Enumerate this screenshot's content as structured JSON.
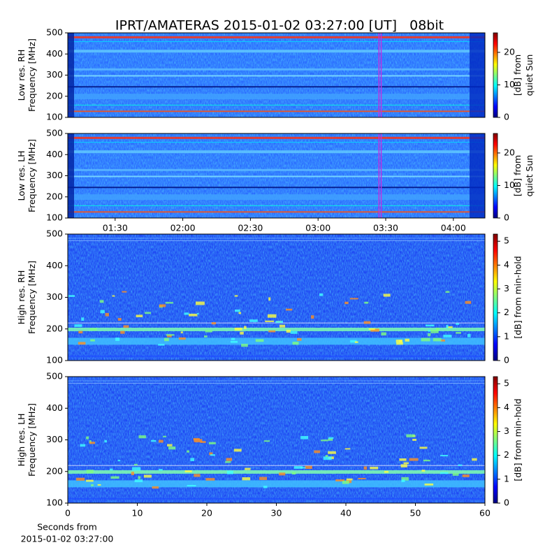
{
  "title": "IPRT/AMATERAS 2015-01-02 03:27:00 [UT]   08bit",
  "chart_data": [
    {
      "type": "spectrogram",
      "ylabel": [
        "Low res. RH",
        "Frequency [MHz]"
      ],
      "ylim": [
        100,
        500
      ],
      "yticks": [
        100,
        200,
        300,
        400,
        500
      ],
      "xlim": [
        "01:09",
        "04:14"
      ],
      "highlight": [
        "03:27",
        "03:28"
      ],
      "colorbar": {
        "label": [
          "[dB] from",
          "quiet Sun"
        ],
        "lim": [
          0,
          26
        ],
        "ticks": [
          0,
          10,
          20
        ]
      }
    },
    {
      "type": "spectrogram",
      "ylabel": [
        "Low res. LH",
        "Frequency [MHz]"
      ],
      "ylim": [
        100,
        500
      ],
      "yticks": [
        100,
        200,
        300,
        400,
        500
      ],
      "xlim": [
        "01:09",
        "04:14"
      ],
      "xticks": [
        "01:30",
        "02:00",
        "02:30",
        "03:00",
        "03:30",
        "04:00"
      ],
      "highlight": [
        "03:27",
        "03:28"
      ],
      "colorbar": {
        "label": [
          "[dB] from",
          "quiet Sun"
        ],
        "lim": [
          0,
          26
        ],
        "ticks": [
          0,
          10,
          20
        ]
      }
    },
    {
      "type": "spectrogram",
      "ylabel": [
        "High res. RH",
        "Frequency [MHz]"
      ],
      "ylim": [
        100,
        500
      ],
      "yticks": [
        100,
        200,
        300,
        400,
        500
      ],
      "xlim": [
        0,
        60
      ],
      "colorbar": {
        "label": [
          "[dB] from min-hold"
        ],
        "lim": [
          0,
          5.3
        ],
        "ticks": [
          0,
          1,
          2,
          3,
          4,
          5
        ]
      }
    },
    {
      "type": "spectrogram",
      "ylabel": [
        "High res. LH",
        "Frequency [MHz]"
      ],
      "ylim": [
        100,
        500
      ],
      "yticks": [
        100,
        200,
        300,
        400,
        500
      ],
      "xlim": [
        0,
        60
      ],
      "xticks": [
        0,
        10,
        20,
        30,
        40,
        50,
        60
      ],
      "xlabel": [
        "Seconds from",
        "2015-01-02 03:27:00"
      ],
      "colorbar": {
        "label": [
          "[dB] from min-hold"
        ],
        "lim": [
          0,
          5.3
        ],
        "ticks": [
          0,
          1,
          2,
          3,
          4,
          5
        ]
      }
    }
  ]
}
